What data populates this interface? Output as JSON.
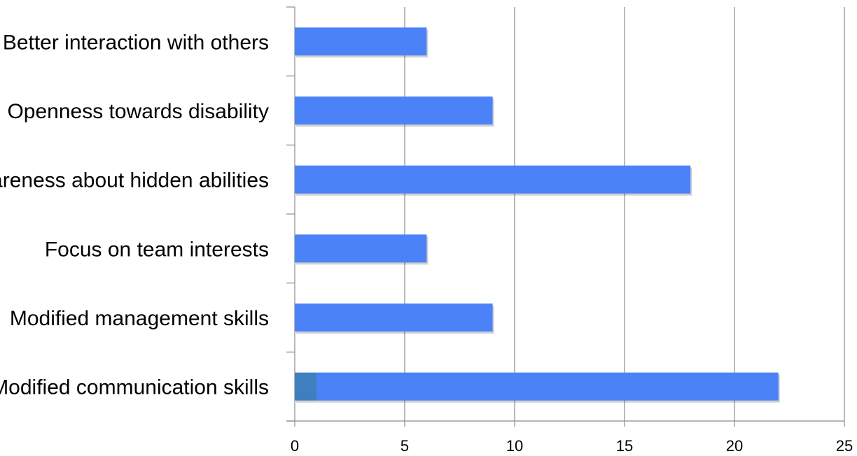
{
  "chart_data": {
    "type": "bar",
    "orientation": "horizontal",
    "title": "",
    "xlabel": "",
    "ylabel": "",
    "categories": [
      "Better interaction with others",
      "Openness towards disability",
      "Awareness about hidden abilities",
      "Focus on team interests",
      "Modified management skills",
      "Modified communication skills"
    ],
    "series": [
      {
        "values": [
          0,
          0,
          0,
          0,
          0,
          1
        ],
        "color": "#3F7FBF"
      },
      {
        "values": [
          6,
          9,
          18,
          6,
          9,
          21
        ],
        "color": "#4B82F7"
      }
    ],
    "stacked": true,
    "xlim": [
      0,
      25
    ],
    "xticks": [
      0,
      5,
      10,
      15,
      20,
      25
    ],
    "xtick_labels": [
      "0",
      "5",
      "10",
      "15",
      "20",
      "25"
    ],
    "grid": "vertical",
    "legend": "none"
  }
}
